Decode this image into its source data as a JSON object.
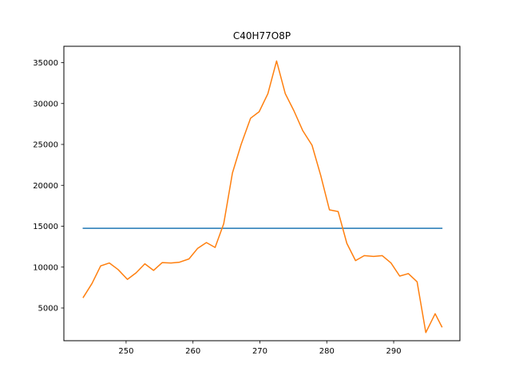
{
  "chart_data": {
    "type": "line",
    "title": "C40H77O8P",
    "xlabel": "",
    "ylabel": "",
    "xlim": [
      240.7,
      299.9
    ],
    "ylim": [
      1000,
      37000
    ],
    "x_ticks": [
      250,
      260,
      270,
      280,
      290
    ],
    "y_ticks": [
      5000,
      10000,
      15000,
      20000,
      25000,
      30000,
      35000
    ],
    "grid": false,
    "legend": "none",
    "series": [
      {
        "color": "#1f77b4",
        "x": [
          243.6,
          297.2
        ],
        "y": [
          14750,
          14750
        ]
      },
      {
        "color": "#ff7f0e",
        "x": [
          243.6,
          244.9,
          246.2,
          247.5,
          248.8,
          250.2,
          251.5,
          252.8,
          254.1,
          255.4,
          256.7,
          258.0,
          259.4,
          260.7,
          262.0,
          263.3,
          264.6,
          265.9,
          267.2,
          268.6,
          269.9,
          271.2,
          272.5,
          273.8,
          275.1,
          276.4,
          277.8,
          279.1,
          280.4,
          281.7,
          283.0,
          284.3,
          285.6,
          287.0,
          288.3,
          289.6,
          290.9,
          292.2,
          293.5,
          294.8,
          296.2,
          297.2
        ],
        "y": [
          6300,
          8000,
          10150,
          10500,
          9700,
          8500,
          9300,
          10400,
          9600,
          10550,
          10500,
          10600,
          11000,
          12300,
          13000,
          12400,
          15300,
          21500,
          25000,
          28200,
          29000,
          31200,
          35200,
          31200,
          29100,
          26700,
          24900,
          21200,
          17000,
          16800,
          12900,
          10800,
          11400,
          11300,
          11400,
          10500,
          8900,
          9200,
          8200,
          2000,
          4300,
          2700
        ]
      }
    ]
  }
}
